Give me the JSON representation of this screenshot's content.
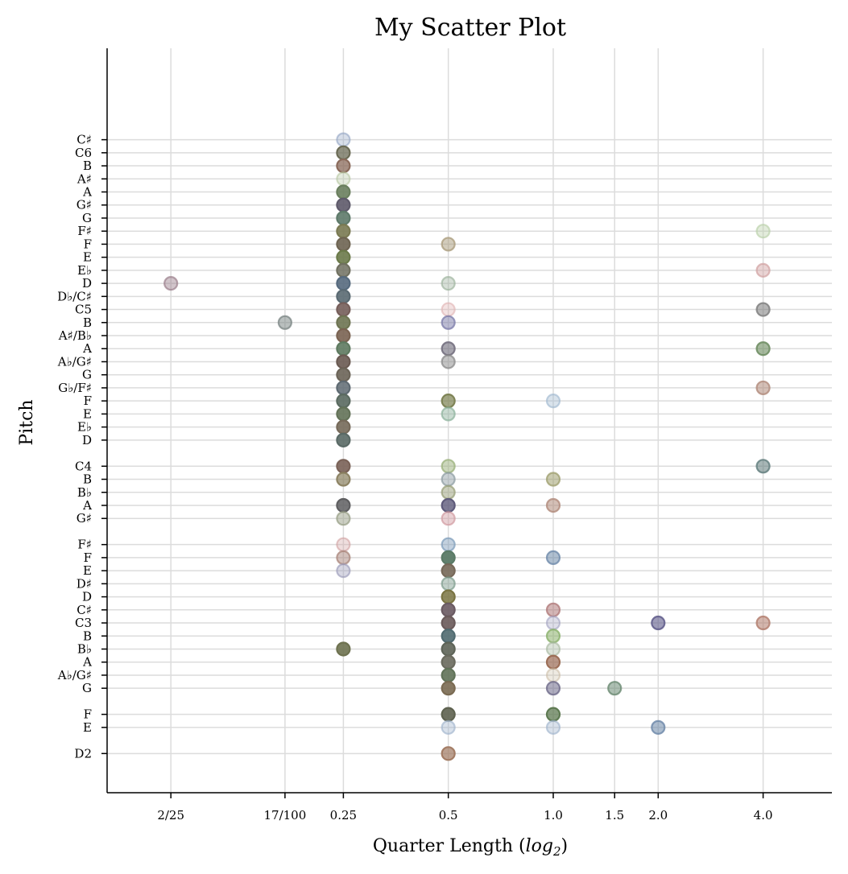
{
  "chart_data": {
    "type": "scatter",
    "title": "My Scatter Plot",
    "xlabel": "Quarter Length ($log_2$)",
    "xlabel_parts": [
      "Quarter Length (",
      "log",
      "2",
      ")"
    ],
    "ylabel": "Pitch",
    "x_scale": "log2",
    "xlim": [
      0.0525,
      6.3
    ],
    "ylim": [
      35,
      92
    ],
    "grid": true,
    "x_ticks": [
      {
        "value": 0.08,
        "label": "2/25"
      },
      {
        "value": 0.17,
        "label": "17/100"
      },
      {
        "value": 0.25,
        "label": "0.25"
      },
      {
        "value": 0.5,
        "label": "0.5"
      },
      {
        "value": 1.0,
        "label": "1.0"
      },
      {
        "value": 1.5,
        "label": "1.5"
      },
      {
        "value": 2.0,
        "label": "2.0"
      },
      {
        "value": 4.0,
        "label": "4.0"
      }
    ],
    "y_ticks": [
      {
        "value": 85,
        "label": "C♯"
      },
      {
        "value": 84,
        "label": "C6"
      },
      {
        "value": 83,
        "label": "B"
      },
      {
        "value": 82,
        "label": "A♯"
      },
      {
        "value": 81,
        "label": "A"
      },
      {
        "value": 80,
        "label": "G♯"
      },
      {
        "value": 79,
        "label": "G"
      },
      {
        "value": 78,
        "label": "F♯"
      },
      {
        "value": 77,
        "label": "F"
      },
      {
        "value": 76,
        "label": "E"
      },
      {
        "value": 75,
        "label": "E♭"
      },
      {
        "value": 74,
        "label": "D"
      },
      {
        "value": 73,
        "label": "D♭/C♯"
      },
      {
        "value": 72,
        "label": "C5"
      },
      {
        "value": 71,
        "label": "B"
      },
      {
        "value": 70,
        "label": "A♯/B♭"
      },
      {
        "value": 69,
        "label": "A"
      },
      {
        "value": 68,
        "label": "A♭/G♯"
      },
      {
        "value": 67,
        "label": "G"
      },
      {
        "value": 66,
        "label": "G♭/F♯"
      },
      {
        "value": 65,
        "label": "F"
      },
      {
        "value": 64,
        "label": "E"
      },
      {
        "value": 63,
        "label": "E♭"
      },
      {
        "value": 62,
        "label": "D"
      },
      {
        "value": 60,
        "label": "C4"
      },
      {
        "value": 59,
        "label": "B"
      },
      {
        "value": 58,
        "label": "B♭"
      },
      {
        "value": 57,
        "label": "A"
      },
      {
        "value": 56,
        "label": "G♯"
      },
      {
        "value": 54,
        "label": "F♯"
      },
      {
        "value": 53,
        "label": "F"
      },
      {
        "value": 52,
        "label": "E"
      },
      {
        "value": 51,
        "label": "D♯"
      },
      {
        "value": 50,
        "label": "D"
      },
      {
        "value": 49,
        "label": "C♯"
      },
      {
        "value": 48,
        "label": "C3"
      },
      {
        "value": 47,
        "label": "B"
      },
      {
        "value": 46,
        "label": "B♭"
      },
      {
        "value": 45,
        "label": "A"
      },
      {
        "value": 44,
        "label": "A♭/G♯"
      },
      {
        "value": 43,
        "label": "G"
      },
      {
        "value": 41,
        "label": "F"
      },
      {
        "value": 40,
        "label": "E"
      },
      {
        "value": 38,
        "label": "D2"
      }
    ],
    "points": [
      {
        "x": 0.08,
        "y": 74,
        "color": "#9a7d8a",
        "alpha": 0.45
      },
      {
        "x": 0.17,
        "y": 71,
        "color": "#7f8a88",
        "alpha": 0.55
      },
      {
        "x": 0.25,
        "y": 85,
        "color": "#8fa2c2",
        "alpha": 0.35
      },
      {
        "x": 0.25,
        "y": 84,
        "color": "#6b6b55",
        "alpha": 0.75
      },
      {
        "x": 0.25,
        "y": 83,
        "color": "#8a6a5a",
        "alpha": 0.75
      },
      {
        "x": 0.25,
        "y": 82,
        "color": "#b5c7a0",
        "alpha": 0.35
      },
      {
        "x": 0.25,
        "y": 81,
        "color": "#6a7f5e",
        "alpha": 0.9
      },
      {
        "x": 0.25,
        "y": 80,
        "color": "#5e5a6a",
        "alpha": 0.9
      },
      {
        "x": 0.25,
        "y": 79,
        "color": "#5e7a6a",
        "alpha": 0.9
      },
      {
        "x": 0.25,
        "y": 78,
        "color": "#7a7a52",
        "alpha": 0.9
      },
      {
        "x": 0.25,
        "y": 77,
        "color": "#6e6452",
        "alpha": 0.9
      },
      {
        "x": 0.25,
        "y": 76,
        "color": "#6b7a4a",
        "alpha": 0.9
      },
      {
        "x": 0.25,
        "y": 75,
        "color": "#707060",
        "alpha": 0.85
      },
      {
        "x": 0.25,
        "y": 74,
        "color": "#566a7e",
        "alpha": 0.9
      },
      {
        "x": 0.25,
        "y": 73,
        "color": "#5a6a72",
        "alpha": 0.9
      },
      {
        "x": 0.25,
        "y": 72,
        "color": "#765e5a",
        "alpha": 0.9
      },
      {
        "x": 0.25,
        "y": 71,
        "color": "#6e7452",
        "alpha": 0.9
      },
      {
        "x": 0.25,
        "y": 70,
        "color": "#7a6352",
        "alpha": 0.9
      },
      {
        "x": 0.25,
        "y": 69,
        "color": "#5e7a60",
        "alpha": 0.9
      },
      {
        "x": 0.25,
        "y": 68,
        "color": "#6a5a52",
        "alpha": 0.9
      },
      {
        "x": 0.25,
        "y": 67,
        "color": "#6b6458",
        "alpha": 0.9
      },
      {
        "x": 0.25,
        "y": 66,
        "color": "#5e6a72",
        "alpha": 0.85
      },
      {
        "x": 0.25,
        "y": 65,
        "color": "#5a6a60",
        "alpha": 0.9
      },
      {
        "x": 0.25,
        "y": 64,
        "color": "#637258",
        "alpha": 0.9
      },
      {
        "x": 0.25,
        "y": 63,
        "color": "#766a5a",
        "alpha": 0.9
      },
      {
        "x": 0.25,
        "y": 62,
        "color": "#5a6a66",
        "alpha": 0.9
      },
      {
        "x": 0.25,
        "y": 60,
        "color": "#7a6258",
        "alpha": 0.9
      },
      {
        "x": 0.25,
        "y": 59,
        "color": "#8a8060",
        "alpha": 0.7
      },
      {
        "x": 0.25,
        "y": 57,
        "color": "#5e5e60",
        "alpha": 0.85
      },
      {
        "x": 0.25,
        "y": 56,
        "color": "#9aa088",
        "alpha": 0.5
      },
      {
        "x": 0.25,
        "y": 54,
        "color": "#d0a0a0",
        "alpha": 0.35
      },
      {
        "x": 0.25,
        "y": 53,
        "color": "#a8847a",
        "alpha": 0.5
      },
      {
        "x": 0.25,
        "y": 52,
        "color": "#9a9ab8",
        "alpha": 0.4
      },
      {
        "x": 0.25,
        "y": 46,
        "color": "#6e7250",
        "alpha": 0.9
      },
      {
        "x": 0.5,
        "y": 77,
        "color": "#a89a7a",
        "alpha": 0.5
      },
      {
        "x": 0.5,
        "y": 74,
        "color": "#9ab09a",
        "alpha": 0.4
      },
      {
        "x": 0.5,
        "y": 72,
        "color": "#e0b0b0",
        "alpha": 0.35
      },
      {
        "x": 0.5,
        "y": 71,
        "color": "#7a7aa8",
        "alpha": 0.5
      },
      {
        "x": 0.5,
        "y": 69,
        "color": "#6e6a7a",
        "alpha": 0.6
      },
      {
        "x": 0.5,
        "y": 68,
        "color": "#8a8a8a",
        "alpha": 0.5
      },
      {
        "x": 0.5,
        "y": 65,
        "color": "#7a8050",
        "alpha": 0.7
      },
      {
        "x": 0.5,
        "y": 64,
        "color": "#8ab09a",
        "alpha": 0.45
      },
      {
        "x": 0.5,
        "y": 60,
        "color": "#9ab07a",
        "alpha": 0.5
      },
      {
        "x": 0.5,
        "y": 59,
        "color": "#8a9aa0",
        "alpha": 0.45
      },
      {
        "x": 0.5,
        "y": 58,
        "color": "#9aa07a",
        "alpha": 0.5
      },
      {
        "x": 0.5,
        "y": 57,
        "color": "#5e5a7a",
        "alpha": 0.8
      },
      {
        "x": 0.5,
        "y": 56,
        "color": "#d09aa0",
        "alpha": 0.45
      },
      {
        "x": 0.5,
        "y": 54,
        "color": "#7a9ab8",
        "alpha": 0.45
      },
      {
        "x": 0.5,
        "y": 53,
        "color": "#5a7a66",
        "alpha": 0.95
      },
      {
        "x": 0.5,
        "y": 52,
        "color": "#766858",
        "alpha": 0.9
      },
      {
        "x": 0.5,
        "y": 51,
        "color": "#7a9a8a",
        "alpha": 0.45
      },
      {
        "x": 0.5,
        "y": 50,
        "color": "#7a7442",
        "alpha": 0.85
      },
      {
        "x": 0.5,
        "y": 49,
        "color": "#6a5a62",
        "alpha": 0.9
      },
      {
        "x": 0.5,
        "y": 48,
        "color": "#6a5a5a",
        "alpha": 0.9
      },
      {
        "x": 0.5,
        "y": 47,
        "color": "#506a70",
        "alpha": 0.9
      },
      {
        "x": 0.5,
        "y": 46,
        "color": "#5e6458",
        "alpha": 0.9
      },
      {
        "x": 0.5,
        "y": 45,
        "color": "#6a6a5e",
        "alpha": 0.9
      },
      {
        "x": 0.5,
        "y": 44,
        "color": "#607258",
        "alpha": 0.9
      },
      {
        "x": 0.5,
        "y": 43,
        "color": "#7a6a52",
        "alpha": 0.9
      },
      {
        "x": 0.5,
        "y": 41,
        "color": "#5e6250",
        "alpha": 0.9
      },
      {
        "x": 0.5,
        "y": 40,
        "color": "#a0b4cc",
        "alpha": 0.4
      },
      {
        "x": 0.5,
        "y": 38,
        "color": "#a07860",
        "alpha": 0.7
      },
      {
        "x": 1.0,
        "y": 65,
        "color": "#a0b8d0",
        "alpha": 0.4
      },
      {
        "x": 1.0,
        "y": 59,
        "color": "#a0a070",
        "alpha": 0.55
      },
      {
        "x": 1.0,
        "y": 57,
        "color": "#b08a7a",
        "alpha": 0.55
      },
      {
        "x": 1.0,
        "y": 53,
        "color": "#6e8aaa",
        "alpha": 0.55
      },
      {
        "x": 1.0,
        "y": 49,
        "color": "#b07a7a",
        "alpha": 0.55
      },
      {
        "x": 1.0,
        "y": 48,
        "color": "#a0a0c0",
        "alpha": 0.35
      },
      {
        "x": 1.0,
        "y": 47,
        "color": "#8ab06a",
        "alpha": 0.55
      },
      {
        "x": 1.0,
        "y": 46,
        "color": "#a8b8a0",
        "alpha": 0.4
      },
      {
        "x": 1.0,
        "y": 45,
        "color": "#9a6a52",
        "alpha": 0.7
      },
      {
        "x": 1.0,
        "y": 44,
        "color": "#c8b8a0",
        "alpha": 0.3
      },
      {
        "x": 1.0,
        "y": 43,
        "color": "#6e6a8a",
        "alpha": 0.55
      },
      {
        "x": 1.0,
        "y": 41,
        "color": "#5e7a52",
        "alpha": 0.75
      },
      {
        "x": 1.0,
        "y": 40,
        "color": "#a0b4cc",
        "alpha": 0.4
      },
      {
        "x": 1.5,
        "y": 43,
        "color": "#6a8a72",
        "alpha": 0.55
      },
      {
        "x": 2.0,
        "y": 48,
        "color": "#5e5a8a",
        "alpha": 0.6
      },
      {
        "x": 2.0,
        "y": 40,
        "color": "#6a86a8",
        "alpha": 0.55
      },
      {
        "x": 4.0,
        "y": 78,
        "color": "#b8d0a8",
        "alpha": 0.4
      },
      {
        "x": 4.0,
        "y": 75,
        "color": "#d0a0a0",
        "alpha": 0.45
      },
      {
        "x": 4.0,
        "y": 72,
        "color": "#7a7a7a",
        "alpha": 0.55
      },
      {
        "x": 4.0,
        "y": 69,
        "color": "#6a8a5e",
        "alpha": 0.6
      },
      {
        "x": 4.0,
        "y": 66,
        "color": "#b08a7a",
        "alpha": 0.55
      },
      {
        "x": 4.0,
        "y": 60,
        "color": "#5e7a7a",
        "alpha": 0.55
      },
      {
        "x": 4.0,
        "y": 48,
        "color": "#b07a6a",
        "alpha": 0.55
      }
    ]
  }
}
